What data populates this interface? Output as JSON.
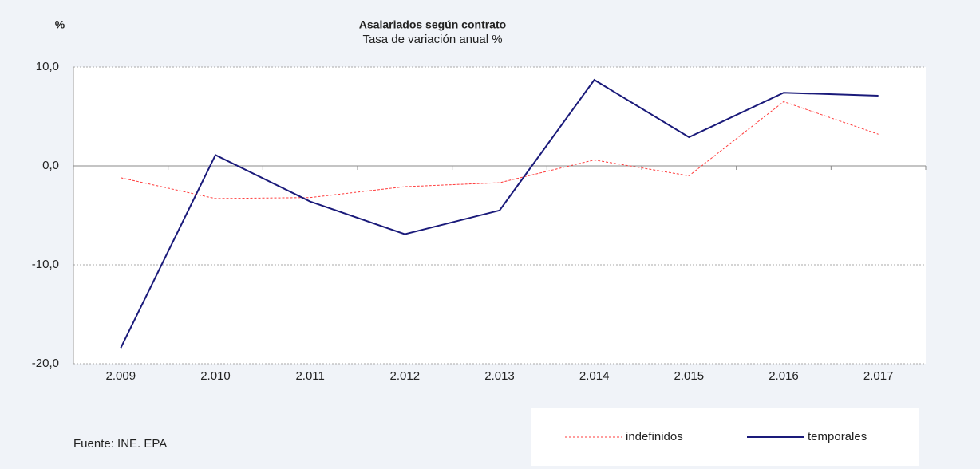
{
  "chart_data": {
    "type": "line",
    "title": "Asalariados según contrato",
    "subtitle": "Tasa de variación anual %",
    "y_unit": "%",
    "source": "Fuente: INE. EPA",
    "categories": [
      "2.009",
      "2.010",
      "2.011",
      "2.012",
      "2.013",
      "2.014",
      "2.015",
      "2.016",
      "2.017"
    ],
    "series": [
      {
        "name": "indefinidos",
        "color": "#ff3b3b",
        "dashed": true,
        "values": [
          -1.2,
          -3.3,
          -3.2,
          -2.1,
          -1.7,
          0.6,
          -1.0,
          6.5,
          3.2
        ]
      },
      {
        "name": "temporales",
        "color": "#1a1a7a",
        "dashed": false,
        "values": [
          -18.4,
          1.1,
          -3.6,
          -6.9,
          -4.5,
          8.7,
          2.9,
          7.4,
          7.1
        ]
      }
    ],
    "ylim": [
      -20,
      10
    ],
    "yticks": [
      {
        "value": -20,
        "label": "-20,0"
      },
      {
        "value": -10,
        "label": "-10,0"
      },
      {
        "value": 0,
        "label": "0,0"
      },
      {
        "value": 10,
        "label": "10,0"
      }
    ],
    "grid": true
  }
}
